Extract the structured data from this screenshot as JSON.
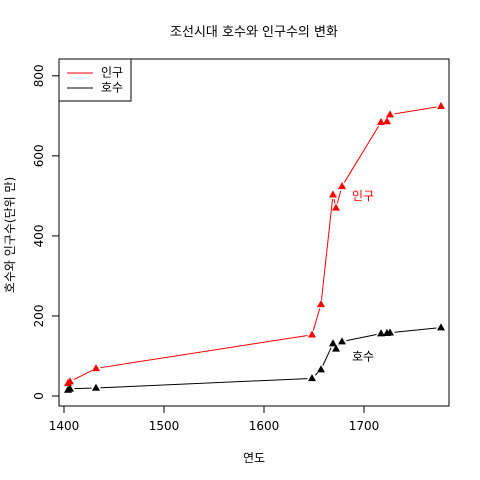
{
  "chart_data": {
    "type": "line",
    "title": "조선시대 호수와 인구수의 변화",
    "xlabel": "연도",
    "ylabel": "호수와 인구수(단위 만)",
    "xlim": [
      1395,
      1785
    ],
    "ylim": [
      -25,
      842
    ],
    "xticks": [
      1400,
      1500,
      1600,
      1700
    ],
    "yticks": [
      0,
      200,
      400,
      600,
      800
    ],
    "grid": false,
    "legend_position": "top-left",
    "series": [
      {
        "name": "인구",
        "color": "#ff0000",
        "marker": "triangle",
        "label": "인구",
        "x": [
          1404,
          1406,
          1432,
          1648,
          1657,
          1669,
          1672,
          1678,
          1717,
          1723,
          1726,
          1777
        ],
        "y": [
          32,
          36,
          69,
          153,
          229,
          503,
          470,
          524,
          684,
          686,
          703,
          724
        ]
      },
      {
        "name": "호수",
        "color": "#000000",
        "marker": "triangle",
        "label": "호수",
        "x": [
          1404,
          1406,
          1432,
          1648,
          1657,
          1669,
          1672,
          1678,
          1717,
          1723,
          1726,
          1777
        ],
        "y": [
          15,
          18,
          20,
          44,
          66,
          131,
          118,
          136,
          156,
          157,
          158,
          171
        ]
      }
    ]
  }
}
